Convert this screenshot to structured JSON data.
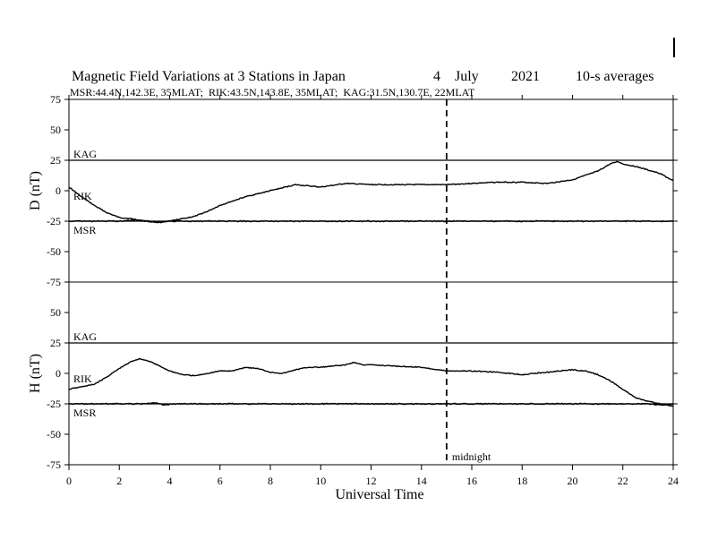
{
  "chart_data": {
    "type": "line",
    "title": "Magnetic Field Variations at 3 Stations in Japan",
    "date": {
      "day": "4",
      "month": "July",
      "year": "2021"
    },
    "averaging": "10-s averages",
    "subtitle": "MSR:44.4N,142.3E, 35MLAT;  RIK:43.5N,143.8E, 35MLAT;  KAG:31.5N,130.7E, 22MLAT",
    "xlabel": "Universal Time",
    "xlim": [
      0,
      24
    ],
    "xticks": [
      0,
      2,
      4,
      6,
      8,
      10,
      12,
      14,
      16,
      18,
      20,
      22,
      24
    ],
    "midnight": {
      "x": 15,
      "label": "midnight"
    },
    "panels": [
      {
        "ylabel": "D (nT)",
        "ylim": [
          -75,
          75
        ],
        "yticks": [
          75,
          50,
          25,
          0,
          -25,
          -50,
          -75
        ],
        "reference_lines": [
          {
            "name": "KAG",
            "y": 25
          },
          {
            "name": "RIK",
            "y": 0
          },
          {
            "name": "MSR",
            "y": -25
          }
        ],
        "series": [
          {
            "name": "RIK",
            "x": [
              0,
              0.5,
              1,
              1.5,
              2,
              2.5,
              3,
              3.5,
              4,
              4.5,
              5,
              5.5,
              6,
              7,
              8,
              9,
              10,
              11,
              12,
              13,
              14,
              15,
              16,
              17,
              18,
              19,
              20,
              21,
              21.5,
              21.8,
              22,
              22.5,
              23,
              23.5,
              24
            ],
            "y": [
              3,
              -5,
              -12,
              -18,
              -22,
              -23,
              -25,
              -26,
              -25,
              -23,
              -21,
              -17,
              -12,
              -5,
              0,
              5,
              3,
              6,
              5,
              5,
              5,
              5,
              6,
              7,
              7,
              6,
              9,
              16,
              22,
              24,
              22,
              20,
              17,
              14,
              8
            ]
          },
          {
            "name": "MSR",
            "x": [
              0,
              2,
              2.6,
              3.2,
              3.6,
              4,
              4.4,
              6,
              8,
              10,
              12,
              14,
              16,
              18,
              20,
              22,
              24
            ],
            "y": [
              -25,
              -25,
              -24,
              -25,
              -26,
              -25,
              -25,
              -25,
              -25,
              -25,
              -25,
              -25,
              -25,
              -25,
              -25,
              -25,
              -25
            ]
          }
        ]
      },
      {
        "ylabel": "H (nT)",
        "ylim": [
          -75,
          75
        ],
        "yticks": [
          75,
          50,
          25,
          0,
          -25,
          -50,
          -75
        ],
        "reference_lines": [
          {
            "name": "KAG",
            "y": 25
          },
          {
            "name": "RIK",
            "y": 0
          },
          {
            "name": "MSR",
            "y": -25
          }
        ],
        "series": [
          {
            "name": "RIK",
            "x": [
              0,
              0.5,
              1,
              1.5,
              2,
              2.5,
              2.8,
              3.2,
              3.6,
              4,
              4.5,
              5,
              5.5,
              6,
              6.5,
              7,
              7.5,
              8,
              8.5,
              9,
              9.5,
              10,
              10.5,
              11,
              11.3,
              11.7,
              12,
              13,
              14,
              15,
              16,
              17,
              18,
              19,
              20,
              20.5,
              21,
              21.5,
              22,
              22.5,
              23,
              23.5,
              24
            ],
            "y": [
              -13,
              -11,
              -9,
              -3,
              4,
              10,
              12,
              10,
              6,
              2,
              -1,
              -2,
              0,
              2,
              2,
              5,
              4,
              1,
              0,
              3,
              5,
              5,
              6,
              7,
              9,
              7,
              7,
              6,
              5,
              2,
              2,
              1,
              -1,
              1,
              3,
              2,
              -1,
              -6,
              -13,
              -20,
              -23,
              -25,
              -27
            ]
          },
          {
            "name": "MSR",
            "x": [
              0,
              3,
              3.4,
              3.8,
              4.2,
              6,
              8,
              10,
              12,
              14,
              16,
              18,
              20,
              21,
              22,
              23,
              23.5,
              24
            ],
            "y": [
              -25,
              -25,
              -24,
              -26,
              -25,
              -25,
              -25,
              -25,
              -25,
              -25,
              -25,
              -25,
              -25,
              -25,
              -25,
              -25,
              -26,
              -25
            ]
          }
        ]
      }
    ]
  }
}
